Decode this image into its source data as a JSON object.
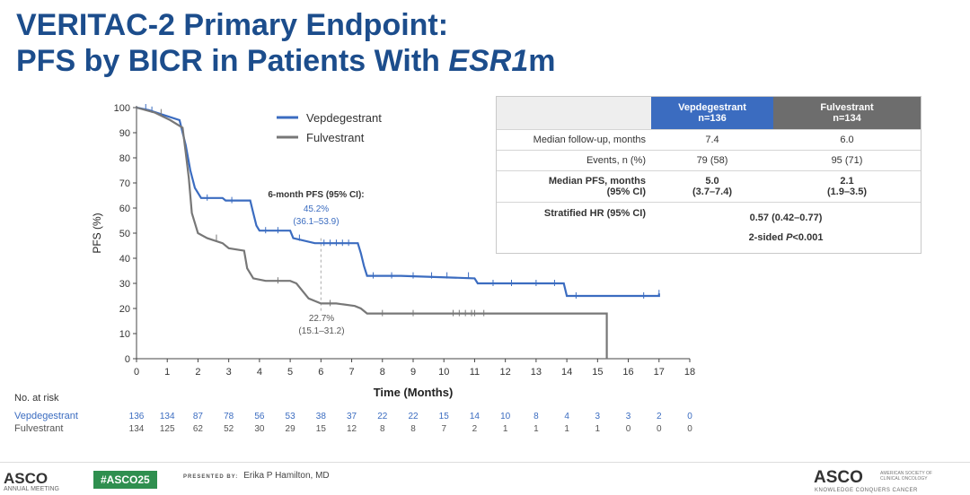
{
  "slide": {
    "title_line1": "VERITAC-2 Primary Endpoint:",
    "title_line2_pre": "PFS by BICR in Patients With ",
    "title_line2_em": "ESR1",
    "title_line2_post": "m"
  },
  "chart_data": {
    "type": "line",
    "xlabel": "Time (Months)",
    "ylabel": "PFS (%)",
    "xlim": [
      0,
      18
    ],
    "ylim": [
      0,
      100
    ],
    "xticks": [
      0,
      1,
      2,
      3,
      4,
      5,
      6,
      7,
      8,
      9,
      10,
      11,
      12,
      13,
      14,
      15,
      16,
      17,
      18
    ],
    "yticks": [
      0,
      10,
      20,
      30,
      40,
      50,
      60,
      70,
      80,
      90,
      100
    ],
    "legend_position": "top-center",
    "series": [
      {
        "name": "Vepdegestrant",
        "color": "#3b6cc0",
        "points": [
          [
            0,
            100
          ],
          [
            0.4,
            99
          ],
          [
            0.9,
            97
          ],
          [
            1.4,
            95
          ],
          [
            1.6,
            85
          ],
          [
            1.75,
            75
          ],
          [
            1.9,
            68
          ],
          [
            2.1,
            64
          ],
          [
            2.8,
            64
          ],
          [
            2.9,
            63
          ],
          [
            3.7,
            63
          ],
          [
            3.8,
            58
          ],
          [
            3.9,
            53
          ],
          [
            4.0,
            51
          ],
          [
            5.0,
            51
          ],
          [
            5.1,
            48
          ],
          [
            5.8,
            46
          ],
          [
            7.2,
            46
          ],
          [
            7.3,
            42
          ],
          [
            7.4,
            37
          ],
          [
            7.5,
            33
          ],
          [
            8.5,
            33
          ],
          [
            8.6,
            33
          ],
          [
            11.0,
            32
          ],
          [
            11.1,
            30
          ],
          [
            13.9,
            30
          ],
          [
            14.0,
            25
          ],
          [
            17.0,
            25
          ],
          [
            17.0,
            26
          ]
        ],
        "censor_x": [
          0.3,
          0.5,
          2.3,
          3.1,
          4.2,
          4.6,
          5.3,
          6.1,
          6.3,
          6.5,
          6.7,
          6.9,
          7.7,
          8.3,
          9.0,
          9.6,
          10.1,
          10.8,
          11.6,
          12.2,
          13.0,
          13.6,
          14.3,
          16.5,
          17.0
        ]
      },
      {
        "name": "Fulvestrant",
        "color": "#777777",
        "points": [
          [
            0,
            100
          ],
          [
            0.6,
            98
          ],
          [
            1.1,
            95
          ],
          [
            1.5,
            92
          ],
          [
            1.6,
            82
          ],
          [
            1.7,
            72
          ],
          [
            1.8,
            58
          ],
          [
            2.0,
            50
          ],
          [
            2.3,
            48
          ],
          [
            2.8,
            46
          ],
          [
            3.0,
            44
          ],
          [
            3.5,
            43
          ],
          [
            3.6,
            36
          ],
          [
            3.8,
            32
          ],
          [
            4.2,
            31
          ],
          [
            5.0,
            31
          ],
          [
            5.2,
            30
          ],
          [
            5.4,
            27
          ],
          [
            5.6,
            24
          ],
          [
            5.8,
            23
          ],
          [
            6.0,
            22
          ],
          [
            6.5,
            22
          ],
          [
            7.1,
            21
          ],
          [
            7.3,
            20
          ],
          [
            7.5,
            18
          ],
          [
            14.9,
            18
          ],
          [
            15.3,
            18
          ],
          [
            15.3,
            0
          ]
        ],
        "censor_x": [
          0.8,
          2.6,
          4.6,
          6.3,
          8.0,
          9.0,
          10.3,
          10.5,
          10.7,
          10.9,
          11.0,
          11.3
        ]
      }
    ],
    "annotations": {
      "heading": "6-month PFS (95% CI):",
      "vep_value": "45.2%",
      "vep_ci": "(36.1–53.9)",
      "ful_value": "22.7%",
      "ful_ci": "(15.1–31.2)",
      "marker_x": 6
    },
    "at_risk": {
      "label": "No. at risk",
      "rows": [
        {
          "name": "Vepdegestrant",
          "color": "#3b6cc0",
          "values": [
            "136",
            "134",
            "87",
            "78",
            "56",
            "53",
            "38",
            "37",
            "22",
            "22",
            "15",
            "14",
            "10",
            "8",
            "4",
            "3",
            "3",
            "2",
            "0"
          ]
        },
        {
          "name": "Fulvestrant",
          "color": "#555555",
          "values": [
            "134",
            "125",
            "62",
            "52",
            "30",
            "29",
            "15",
            "12",
            "8",
            "8",
            "7",
            "2",
            "1",
            "1",
            "1",
            "1",
            "0",
            "0",
            "0"
          ]
        }
      ]
    }
  },
  "stats_table": {
    "col1_name": "Vepdegestrant",
    "col1_n": "n=136",
    "col2_name": "Fulvestrant",
    "col2_n": "n=134",
    "rows": [
      {
        "label": "Median follow-up, months",
        "v1": "7.4",
        "v2": "6.0"
      },
      {
        "label": "Events, n (%)",
        "v1": "79 (58)",
        "v2": "95 (71)"
      },
      {
        "label": "Median PFS, months",
        "label2": "(95% CI)",
        "v1": "5.0",
        "v1b": "(3.7–7.4)",
        "v2": "2.1",
        "v2b": "(1.9–3.5)"
      }
    ],
    "hr_label": "Stratified HR (95% CI)",
    "hr_value": "0.57 (0.42–0.77)",
    "p_pre": "2-sided ",
    "p_em": "P",
    "p_post": "<0.001"
  },
  "footer": {
    "asco_left": "ASCO",
    "asco_left_sub": "ANNUAL MEETING",
    "hashtag": "#ASCO25",
    "presented_label": "PRESENTED BY:",
    "presenter": "Erika P Hamilton, MD",
    "asco_right": "ASCO",
    "asco_right_tag": "AMERICAN SOCIETY OF CLINICAL ONCOLOGY",
    "asco_right_sub": "KNOWLEDGE CONQUERS CANCER"
  }
}
